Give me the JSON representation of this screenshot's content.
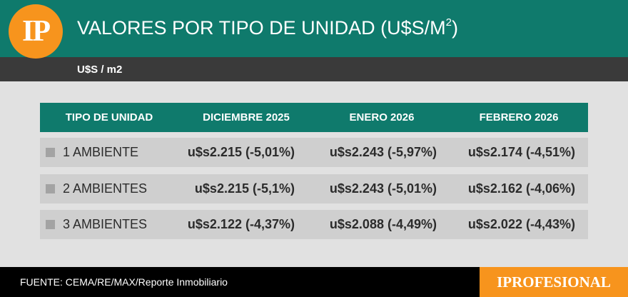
{
  "header": {
    "logo_text": "IP",
    "title": "VALORES POR TIPO DE UNIDAD (U$S/M",
    "title_sup": "2",
    "title_end": ")",
    "unit": "U$S / m2",
    "accent_color": "#0f7a6c",
    "logo_color": "#f7941d"
  },
  "table": {
    "columns": [
      "TIPO DE UNIDAD",
      "DICIEMBRE 2025",
      "ENERO 2026",
      "FEBRERO 2026"
    ],
    "rows": [
      {
        "label": "1 AMBIENTE",
        "values": [
          "u$s2.215 (-5,01%)",
          "u$s2.243 (-5,97%)",
          "u$s2.174 (-4,51%)"
        ]
      },
      {
        "label": "2 AMBIENTES",
        "values": [
          "u$s2.215 (-5,1%)",
          "u$s2.243 (-5,01%)",
          "u$s2.162 (-4,06%)"
        ]
      },
      {
        "label": "3 AMBIENTES",
        "values": [
          "u$s2.122 (-4,37%)",
          "u$s2.088 (-4,49%)",
          "u$s2.022 (-4,43%)"
        ]
      }
    ]
  },
  "footer": {
    "source": "FUENTE: CEMA/RE/MAX/Reporte Inmobiliario",
    "brand": "IPROFESIONAL"
  }
}
